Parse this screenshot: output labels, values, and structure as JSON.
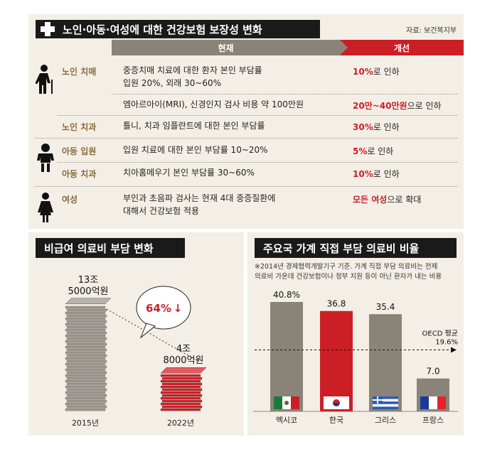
{
  "top": {
    "title": "노인·아동·여성에 대한 건강보험 보장성 변화",
    "source": "자료: 보건복지부",
    "header_current": "현재",
    "header_improved": "개선",
    "rows": [
      {
        "category": "노인 치매",
        "current_1": "중증치매 치료에 대한 환자 본인 부담률",
        "current_2": "입원 20%, 외래 30~60%",
        "imp_bold": "10%",
        "imp_rest": "로 인하"
      },
      {
        "category": "",
        "current_1": "엠아르아이(MRI), 신경인지 검사 비용 약 100만원",
        "current_2": "",
        "imp_bold": "20만~40만원",
        "imp_rest": "으로 인하"
      },
      {
        "category": "노인 치과",
        "current_1": "틀니, 치과 임플란트에 대한 본인 부담률",
        "current_2": "",
        "imp_bold": "30%",
        "imp_rest": "로 인하"
      },
      {
        "category": "아동 입원",
        "current_1": "입원 치료에 대한 본인 부담률 10~20%",
        "current_2": "",
        "imp_bold": "5%",
        "imp_rest": "로 인하"
      },
      {
        "category": "아동 치과",
        "current_1": "치아홈메우기 본인 부담률 30~60%",
        "current_2": "",
        "imp_bold": "10%",
        "imp_rest": "로 인하"
      },
      {
        "category": "여성",
        "current_1": "부인과 초음파 검사는 현재 4대 중증질환에",
        "current_2": "대해서 건강보험 적용",
        "imp_bold": "모든 여성",
        "imp_rest": "으로 확대"
      }
    ]
  },
  "left": {
    "title": "비급여 의료비 부담 변화",
    "change": "64%",
    "arrow": "↓"
  },
  "right": {
    "title": "주요국 가계 직접 부담 의료비 비율",
    "note_1": "※2014년 경제협력개발기구 기준. 가계 직접 부담 의료비는 전체",
    "note_2": "의료비 가운데 건강보험이나 정부 지원 등이 아닌 환자가 내는 비용",
    "avg_label_1": "OECD 평균",
    "avg_label_2": "19.6%"
  },
  "chart_data": [
    {
      "type": "bar",
      "categories": [
        "2015년",
        "2022년"
      ],
      "values": [
        13.5,
        4.8
      ],
      "value_labels": [
        "13조\n5000억원",
        "4조\n8000억원"
      ]
    },
    {
      "type": "bar",
      "categories": [
        "멕시코",
        "한국",
        "그리스",
        "프랑스"
      ],
      "values": [
        40.8,
        36.8,
        35.4,
        7.0
      ],
      "value_labels": [
        "40.8%",
        "36.8",
        "35.4",
        "7.0"
      ],
      "reference_line": {
        "value": 19.6,
        "label": "OECD 평균 19.6%"
      },
      "colors": [
        "#8a8378",
        "#cc1f25",
        "#8a8378",
        "#8a8378"
      ]
    }
  ]
}
